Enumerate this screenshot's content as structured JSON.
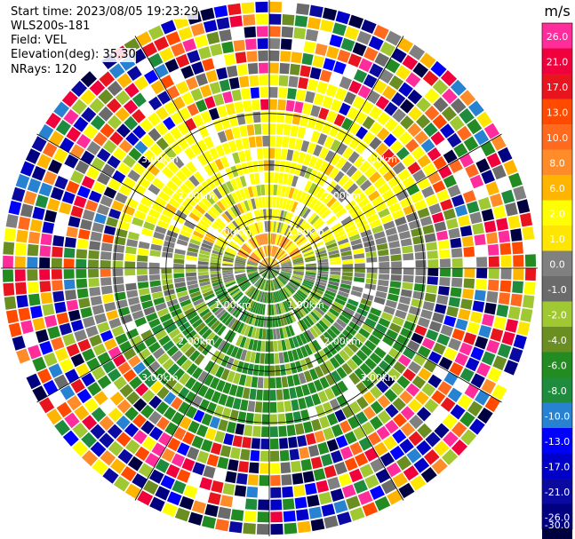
{
  "header": {
    "start_time": "Start time: 2023/08/05 19:23:29",
    "instrument": "WLS200s-181",
    "field": "Field: VEL",
    "elevation": "Elevation(deg): 35.30",
    "nrays": "NRays: 120"
  },
  "chart_data": {
    "type": "heatmap",
    "projection": "polar-ppi",
    "field": "VEL",
    "instrument": "WLS200s-181",
    "elevation_deg": 35.3,
    "n_rays": 120,
    "range_rings_km": [
      1.0,
      2.0,
      3.0
    ],
    "range_ring_labels": [
      "1.00km",
      "2.00km",
      "3.00km"
    ],
    "spoke_angles_deg": [
      0,
      30,
      60,
      90,
      120,
      150,
      180,
      210,
      240,
      270,
      300,
      330
    ],
    "max_range_km": 5.2,
    "colorbar": {
      "unit": "m/s",
      "tick_labels": [
        "26.0",
        "21.0",
        "17.0",
        "13.0",
        "10.0",
        "8.0",
        "6.0",
        "2.0",
        "1.0",
        "0.0",
        "-1.0",
        "-2.0",
        "-4.0",
        "-6.0",
        "-8.0",
        "-10.0",
        "-13.0",
        "-17.0",
        "-21.0",
        "-26.0",
        "-30.0"
      ],
      "bin_colors": [
        "#ff2d9b",
        "#f0003c",
        "#e8141e",
        "#ff4a00",
        "#ff6a1e",
        "#ff8c28",
        "#ffb400",
        "#ffff00",
        "#ffe600",
        "#808080",
        "#6b6b6b",
        "#a0c832",
        "#6b8e23",
        "#228b22",
        "#1e8c3c",
        "#2882d2",
        "#0000ff",
        "#0000c8",
        "#0a0aa0",
        "#000080",
        "#000040"
      ]
    },
    "pattern": {
      "inner_north": "positive 1 to 2 m/s (yellow), orange near origin",
      "south": "negative -2 to -8 m/s (green)",
      "east_west_belt": "near zero (gray)",
      "outer_gates": "noisy, random colors"
    }
  }
}
